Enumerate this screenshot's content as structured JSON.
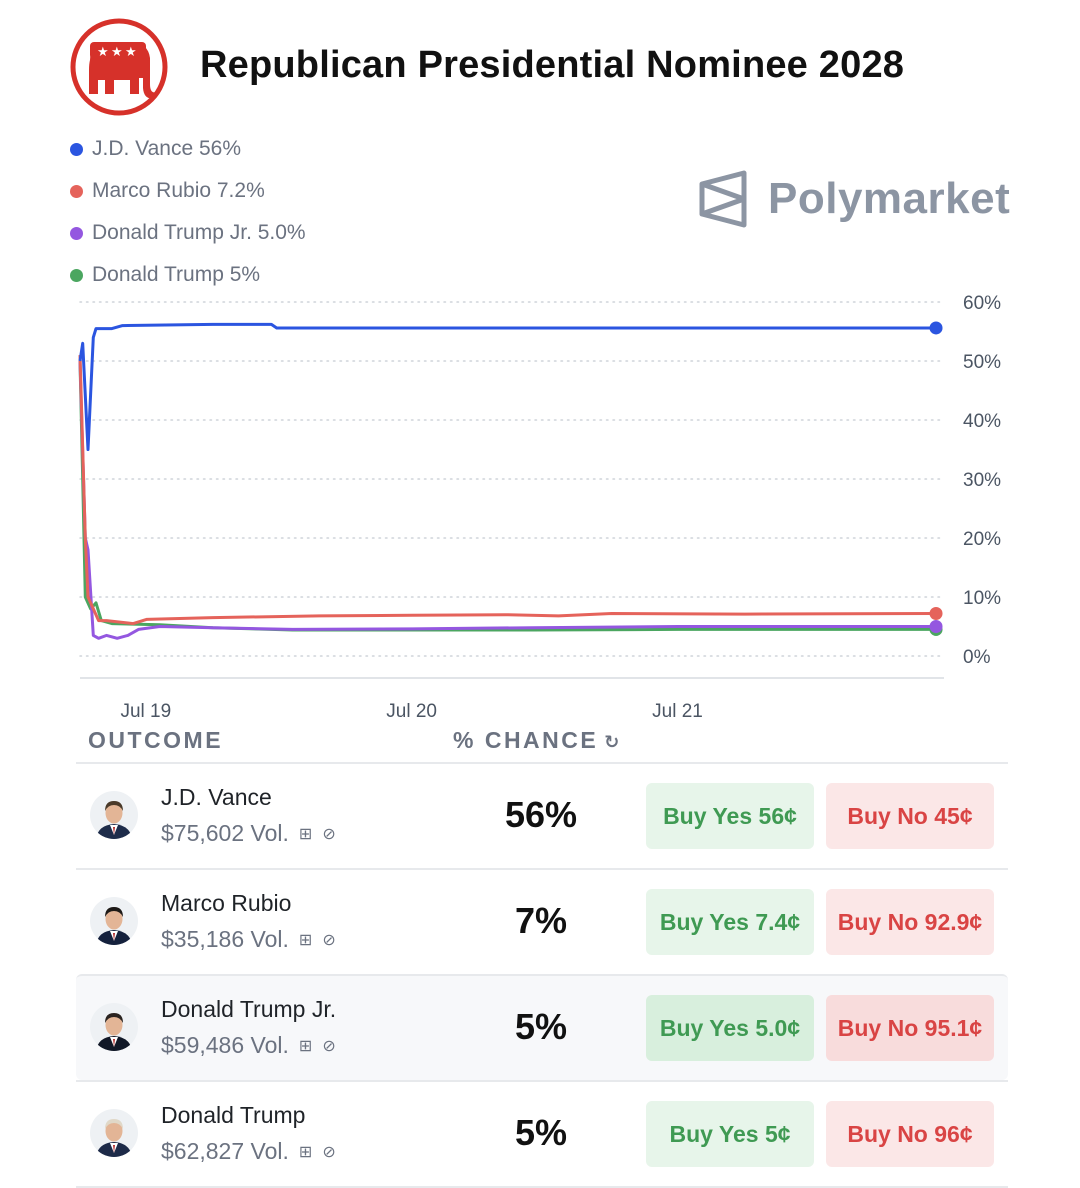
{
  "market": {
    "title": "Republican Presidential Nominee 2028",
    "brand": "Polymarket",
    "logo_icon": "gop-elephant-icon",
    "brand_icon": "polymarket-logo-icon"
  },
  "legend": [
    {
      "label": "J.D. Vance 56%",
      "color": "#2b55e0"
    },
    {
      "label": "Marco Rubio 7.2%",
      "color": "#e5635b"
    },
    {
      "label": "Donald Trump Jr. 5.0%",
      "color": "#9457e0"
    },
    {
      "label": "Donald Trump 5%",
      "color": "#4ba660"
    }
  ],
  "chart_data": {
    "type": "line",
    "title": "",
    "xlabel": "",
    "ylabel": "",
    "x_ticks": [
      "Jul 19",
      "Jul 20",
      "Jul 21"
    ],
    "x_tick_positions_days": [
      0.25,
      1.25,
      2.25
    ],
    "x_range_days": [
      0,
      3.25
    ],
    "y_ticks": [
      "60%",
      "50%",
      "40%",
      "30%",
      "20%",
      "10%",
      "0%"
    ],
    "ylim": [
      0,
      60
    ],
    "y_axis_side": "right",
    "grid": "horizontal dotted",
    "series": [
      {
        "name": "J.D. Vance",
        "color": "#2b55e0",
        "points": [
          [
            0.0,
            50
          ],
          [
            0.01,
            53
          ],
          [
            0.03,
            35
          ],
          [
            0.05,
            54
          ],
          [
            0.06,
            55.5
          ],
          [
            0.12,
            55.5
          ],
          [
            0.16,
            56
          ],
          [
            0.5,
            56.2
          ],
          [
            0.72,
            56.2
          ],
          [
            0.74,
            55.6
          ],
          [
            3.22,
            55.6
          ]
        ]
      },
      {
        "name": "Marco Rubio",
        "color": "#e5635b",
        "points": [
          [
            0.0,
            51
          ],
          [
            0.02,
            20
          ],
          [
            0.03,
            10
          ],
          [
            0.05,
            8
          ],
          [
            0.07,
            6
          ],
          [
            0.1,
            6
          ],
          [
            0.2,
            5.5
          ],
          [
            0.25,
            6.2
          ],
          [
            0.5,
            6.5
          ],
          [
            0.9,
            6.8
          ],
          [
            1.25,
            6.9
          ],
          [
            1.6,
            7.0
          ],
          [
            1.8,
            6.8
          ],
          [
            2.0,
            7.2
          ],
          [
            2.5,
            7.1
          ],
          [
            3.22,
            7.2
          ]
        ]
      },
      {
        "name": "Donald Trump Jr.",
        "color": "#9457e0",
        "points": [
          [
            0.0,
            50
          ],
          [
            0.02,
            20
          ],
          [
            0.03,
            18
          ],
          [
            0.05,
            3.5
          ],
          [
            0.07,
            3
          ],
          [
            0.1,
            3.5
          ],
          [
            0.14,
            3
          ],
          [
            0.18,
            3.5
          ],
          [
            0.22,
            4.5
          ],
          [
            0.3,
            5
          ],
          [
            0.5,
            4.8
          ],
          [
            0.8,
            4.5
          ],
          [
            1.25,
            4.6
          ],
          [
            1.7,
            4.8
          ],
          [
            2.25,
            5.0
          ],
          [
            3.22,
            5.0
          ]
        ]
      },
      {
        "name": "Donald Trump",
        "color": "#4ba660",
        "points": [
          [
            0.0,
            50
          ],
          [
            0.01,
            30
          ],
          [
            0.02,
            10
          ],
          [
            0.04,
            8
          ],
          [
            0.06,
            9
          ],
          [
            0.08,
            6
          ],
          [
            0.12,
            5.5
          ],
          [
            0.3,
            5.3
          ],
          [
            0.5,
            4.8
          ],
          [
            0.8,
            4.4
          ],
          [
            1.25,
            4.4
          ],
          [
            1.7,
            4.4
          ],
          [
            2.25,
            4.5
          ],
          [
            3.22,
            4.5
          ]
        ]
      }
    ]
  },
  "table": {
    "outcome_header": "OUTCOME",
    "chance_header": "% CHANCE",
    "refresh_icon": "↻",
    "gift_icon": "⊞",
    "clock_icon": "⊘",
    "rows": [
      {
        "name": "J.D. Vance",
        "volume": "$75,602 Vol.",
        "chance": "56%",
        "buy_yes": "Buy Yes 56¢",
        "buy_no": "Buy No 45¢",
        "avatar": "jd-vance-avatar",
        "suit": "#1e2c4a"
      },
      {
        "name": "Marco Rubio",
        "volume": "$35,186 Vol.",
        "chance": "7%",
        "buy_yes": "Buy Yes 7.4¢",
        "buy_no": "Buy No 92.9¢",
        "avatar": "marco-rubio-avatar",
        "suit": "#15213d"
      },
      {
        "name": "Donald Trump Jr.",
        "volume": "$59,486 Vol.",
        "chance": "5%",
        "buy_yes": "Buy Yes 5.0¢",
        "buy_no": "Buy No 95.1¢",
        "avatar": "donald-trump-jr-avatar",
        "suit": "#111827"
      },
      {
        "name": "Donald Trump",
        "volume": "$62,827 Vol.",
        "chance": "5%",
        "buy_yes": "Buy Yes 5¢",
        "buy_no": "Buy No 96¢",
        "avatar": "donald-trump-avatar",
        "suit": "#1d2a48"
      }
    ]
  }
}
